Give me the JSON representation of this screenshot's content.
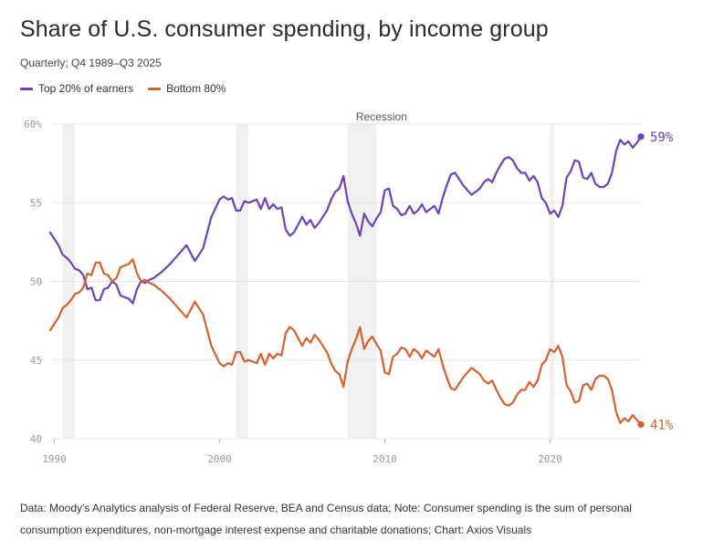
{
  "title": "Share of U.S. consumer spending, by income group",
  "subtitle": "Quarterly; Q4 1989–Q3 2025",
  "footer": "Data: Moody's Analytics analysis of Federal Reserve, BEA and Census data; Note: Consumer spending is the sum of personal consumption expenditures, non-mortgage interest expense and charitable donations; Chart: Axios Visuals",
  "colors": {
    "top20": "#6f3fc2",
    "bottom80": "#d9602b",
    "recession": "#f0f0f0",
    "grid": "#e6e6e6",
    "axis_text": "#999999"
  },
  "chart_data": {
    "type": "line",
    "title": "Share of U.S. consumer spending, by income group",
    "subtitle": "Quarterly; Q4 1989–Q3 2025",
    "xlabel": "",
    "ylabel": "",
    "xlim": [
      1989.75,
      2025.5
    ],
    "ylim": [
      40,
      60
    ],
    "x_ticks": [
      1990,
      2000,
      2010,
      2020
    ],
    "x_tick_labels": [
      "1990",
      "2000",
      "2010",
      "2020"
    ],
    "y_ticks": [
      40,
      45,
      50,
      55,
      60
    ],
    "y_tick_labels": [
      "40",
      "45",
      "50",
      "55",
      "60%"
    ],
    "grid": "horizontal",
    "legend_position": "top-left",
    "annotation": "Recession",
    "recessions": [
      [
        1990.5,
        1991.25
      ],
      [
        2001.0,
        2001.75
      ],
      [
        2007.75,
        2009.5
      ],
      [
        2020.0,
        2020.25
      ]
    ],
    "series": [
      {
        "name": "Top 20% of earners",
        "color": "#6f3fc2",
        "end_label": "59%",
        "points": [
          [
            1989.75,
            53.1
          ],
          [
            1990.0,
            52.7
          ],
          [
            1990.25,
            52.3
          ],
          [
            1990.5,
            51.7
          ],
          [
            1990.75,
            51.5
          ],
          [
            1991.0,
            51.2
          ],
          [
            1991.25,
            50.8
          ],
          [
            1991.5,
            50.7
          ],
          [
            1991.75,
            50.4
          ],
          [
            1992.0,
            49.5
          ],
          [
            1992.25,
            49.6
          ],
          [
            1992.5,
            48.8
          ],
          [
            1992.75,
            48.8
          ],
          [
            1993.0,
            49.5
          ],
          [
            1993.25,
            49.6
          ],
          [
            1993.5,
            50.0
          ],
          [
            1993.75,
            49.8
          ],
          [
            1994.0,
            49.1
          ],
          [
            1994.25,
            49.0
          ],
          [
            1994.5,
            48.9
          ],
          [
            1994.75,
            48.6
          ],
          [
            1995.0,
            49.5
          ],
          [
            1995.25,
            50.0
          ],
          [
            1995.5,
            49.9
          ],
          [
            1995.75,
            50.1
          ],
          [
            1996.0,
            50.2
          ],
          [
            1996.5,
            50.6
          ],
          [
            1997.0,
            51.1
          ],
          [
            1997.5,
            51.7
          ],
          [
            1998.0,
            52.3
          ],
          [
            1998.5,
            51.3
          ],
          [
            1999.0,
            52.1
          ],
          [
            1999.5,
            54.1
          ],
          [
            2000.0,
            55.2
          ],
          [
            2000.25,
            55.4
          ],
          [
            2000.5,
            55.2
          ],
          [
            2000.75,
            55.3
          ],
          [
            2001.0,
            54.5
          ],
          [
            2001.25,
            54.5
          ],
          [
            2001.5,
            55.1
          ],
          [
            2001.75,
            55.0
          ],
          [
            2002.0,
            55.1
          ],
          [
            2002.25,
            55.2
          ],
          [
            2002.5,
            54.6
          ],
          [
            2002.75,
            55.3
          ],
          [
            2003.0,
            54.6
          ],
          [
            2003.25,
            54.9
          ],
          [
            2003.5,
            54.6
          ],
          [
            2003.75,
            54.7
          ],
          [
            2004.0,
            53.3
          ],
          [
            2004.25,
            52.9
          ],
          [
            2004.5,
            53.1
          ],
          [
            2004.75,
            53.6
          ],
          [
            2005.0,
            54.1
          ],
          [
            2005.25,
            53.6
          ],
          [
            2005.5,
            53.9
          ],
          [
            2005.75,
            53.4
          ],
          [
            2006.0,
            53.7
          ],
          [
            2006.25,
            54.1
          ],
          [
            2006.5,
            54.5
          ],
          [
            2006.75,
            55.2
          ],
          [
            2007.0,
            55.7
          ],
          [
            2007.25,
            55.9
          ],
          [
            2007.5,
            56.7
          ],
          [
            2007.75,
            55.1
          ],
          [
            2008.0,
            54.3
          ],
          [
            2008.25,
            53.7
          ],
          [
            2008.5,
            52.9
          ],
          [
            2008.75,
            54.3
          ],
          [
            2009.0,
            53.8
          ],
          [
            2009.25,
            53.5
          ],
          [
            2009.5,
            54.0
          ],
          [
            2009.75,
            54.4
          ],
          [
            2010.0,
            55.8
          ],
          [
            2010.25,
            55.9
          ],
          [
            2010.5,
            54.8
          ],
          [
            2010.75,
            54.6
          ],
          [
            2011.0,
            54.2
          ],
          [
            2011.25,
            54.3
          ],
          [
            2011.5,
            54.8
          ],
          [
            2011.75,
            54.3
          ],
          [
            2012.0,
            54.5
          ],
          [
            2012.25,
            54.9
          ],
          [
            2012.5,
            54.4
          ],
          [
            2012.75,
            54.6
          ],
          [
            2013.0,
            54.8
          ],
          [
            2013.25,
            54.3
          ],
          [
            2013.5,
            55.3
          ],
          [
            2013.75,
            56.1
          ],
          [
            2014.0,
            56.8
          ],
          [
            2014.25,
            56.9
          ],
          [
            2014.5,
            56.5
          ],
          [
            2014.75,
            56.1
          ],
          [
            2015.0,
            55.8
          ],
          [
            2015.25,
            55.5
          ],
          [
            2015.5,
            55.7
          ],
          [
            2015.75,
            55.9
          ],
          [
            2016.0,
            56.3
          ],
          [
            2016.25,
            56.5
          ],
          [
            2016.5,
            56.3
          ],
          [
            2016.75,
            56.9
          ],
          [
            2017.0,
            57.4
          ],
          [
            2017.25,
            57.8
          ],
          [
            2017.5,
            57.9
          ],
          [
            2017.75,
            57.7
          ],
          [
            2018.0,
            57.2
          ],
          [
            2018.25,
            56.9
          ],
          [
            2018.5,
            56.9
          ],
          [
            2018.75,
            56.4
          ],
          [
            2019.0,
            56.7
          ],
          [
            2019.25,
            56.3
          ],
          [
            2019.5,
            55.3
          ],
          [
            2019.75,
            55.0
          ],
          [
            2020.0,
            54.3
          ],
          [
            2020.25,
            54.5
          ],
          [
            2020.5,
            54.1
          ],
          [
            2020.75,
            54.8
          ],
          [
            2021.0,
            56.6
          ],
          [
            2021.25,
            57.0
          ],
          [
            2021.5,
            57.7
          ],
          [
            2021.75,
            57.6
          ],
          [
            2022.0,
            56.6
          ],
          [
            2022.25,
            56.5
          ],
          [
            2022.5,
            56.9
          ],
          [
            2022.75,
            56.2
          ],
          [
            2023.0,
            56.0
          ],
          [
            2023.25,
            56.0
          ],
          [
            2023.5,
            56.2
          ],
          [
            2023.75,
            56.9
          ],
          [
            2024.0,
            58.3
          ],
          [
            2024.25,
            59.0
          ],
          [
            2024.5,
            58.7
          ],
          [
            2024.75,
            58.9
          ],
          [
            2025.0,
            58.5
          ],
          [
            2025.25,
            58.8
          ],
          [
            2025.5,
            59.2
          ]
        ]
      },
      {
        "name": "Bottom 80%",
        "color": "#d9602b",
        "end_label": "41%",
        "points": [
          [
            1989.75,
            46.9
          ],
          [
            1990.0,
            47.3
          ],
          [
            1990.25,
            47.7
          ],
          [
            1990.5,
            48.3
          ],
          [
            1990.75,
            48.5
          ],
          [
            1991.0,
            48.8
          ],
          [
            1991.25,
            49.2
          ],
          [
            1991.5,
            49.3
          ],
          [
            1991.75,
            49.6
          ],
          [
            1992.0,
            50.5
          ],
          [
            1992.25,
            50.4
          ],
          [
            1992.5,
            51.2
          ],
          [
            1992.75,
            51.2
          ],
          [
            1993.0,
            50.5
          ],
          [
            1993.25,
            50.4
          ],
          [
            1993.5,
            50.0
          ],
          [
            1993.75,
            50.2
          ],
          [
            1994.0,
            50.9
          ],
          [
            1994.25,
            51.0
          ],
          [
            1994.5,
            51.1
          ],
          [
            1994.75,
            51.4
          ],
          [
            1995.0,
            50.5
          ],
          [
            1995.25,
            50.0
          ],
          [
            1995.5,
            50.1
          ],
          [
            1995.75,
            49.9
          ],
          [
            1996.0,
            49.8
          ],
          [
            1996.5,
            49.4
          ],
          [
            1997.0,
            48.9
          ],
          [
            1997.5,
            48.3
          ],
          [
            1998.0,
            47.7
          ],
          [
            1998.5,
            48.7
          ],
          [
            1999.0,
            47.9
          ],
          [
            1999.5,
            45.9
          ],
          [
            2000.0,
            44.8
          ],
          [
            2000.25,
            44.6
          ],
          [
            2000.5,
            44.8
          ],
          [
            2000.75,
            44.7
          ],
          [
            2001.0,
            45.5
          ],
          [
            2001.25,
            45.5
          ],
          [
            2001.5,
            44.9
          ],
          [
            2001.75,
            45.0
          ],
          [
            2002.0,
            44.9
          ],
          [
            2002.25,
            44.8
          ],
          [
            2002.5,
            45.4
          ],
          [
            2002.75,
            44.7
          ],
          [
            2003.0,
            45.4
          ],
          [
            2003.25,
            45.1
          ],
          [
            2003.5,
            45.4
          ],
          [
            2003.75,
            45.3
          ],
          [
            2004.0,
            46.7
          ],
          [
            2004.25,
            47.1
          ],
          [
            2004.5,
            46.9
          ],
          [
            2004.75,
            46.4
          ],
          [
            2005.0,
            45.9
          ],
          [
            2005.25,
            46.4
          ],
          [
            2005.5,
            46.1
          ],
          [
            2005.75,
            46.6
          ],
          [
            2006.0,
            46.3
          ],
          [
            2006.25,
            45.9
          ],
          [
            2006.5,
            45.5
          ],
          [
            2006.75,
            44.8
          ],
          [
            2007.0,
            44.3
          ],
          [
            2007.25,
            44.1
          ],
          [
            2007.5,
            43.3
          ],
          [
            2007.75,
            44.9
          ],
          [
            2008.0,
            45.7
          ],
          [
            2008.25,
            46.3
          ],
          [
            2008.5,
            47.1
          ],
          [
            2008.75,
            45.7
          ],
          [
            2009.0,
            46.2
          ],
          [
            2009.25,
            46.5
          ],
          [
            2009.5,
            46.0
          ],
          [
            2009.75,
            45.6
          ],
          [
            2010.0,
            44.2
          ],
          [
            2010.25,
            44.1
          ],
          [
            2010.5,
            45.2
          ],
          [
            2010.75,
            45.4
          ],
          [
            2011.0,
            45.8
          ],
          [
            2011.25,
            45.7
          ],
          [
            2011.5,
            45.2
          ],
          [
            2011.75,
            45.7
          ],
          [
            2012.0,
            45.5
          ],
          [
            2012.25,
            45.1
          ],
          [
            2012.5,
            45.6
          ],
          [
            2012.75,
            45.4
          ],
          [
            2013.0,
            45.2
          ],
          [
            2013.25,
            45.7
          ],
          [
            2013.5,
            44.7
          ],
          [
            2013.75,
            43.9
          ],
          [
            2014.0,
            43.2
          ],
          [
            2014.25,
            43.1
          ],
          [
            2014.5,
            43.5
          ],
          [
            2014.75,
            43.9
          ],
          [
            2015.0,
            44.2
          ],
          [
            2015.25,
            44.5
          ],
          [
            2015.5,
            44.3
          ],
          [
            2015.75,
            44.1
          ],
          [
            2016.0,
            43.7
          ],
          [
            2016.25,
            43.5
          ],
          [
            2016.5,
            43.7
          ],
          [
            2016.75,
            43.1
          ],
          [
            2017.0,
            42.6
          ],
          [
            2017.25,
            42.2
          ],
          [
            2017.5,
            42.1
          ],
          [
            2017.75,
            42.3
          ],
          [
            2018.0,
            42.8
          ],
          [
            2018.25,
            43.1
          ],
          [
            2018.5,
            43.1
          ],
          [
            2018.75,
            43.6
          ],
          [
            2019.0,
            43.3
          ],
          [
            2019.25,
            43.7
          ],
          [
            2019.5,
            44.7
          ],
          [
            2019.75,
            45.0
          ],
          [
            2020.0,
            45.7
          ],
          [
            2020.25,
            45.5
          ],
          [
            2020.5,
            45.9
          ],
          [
            2020.75,
            45.2
          ],
          [
            2021.0,
            43.4
          ],
          [
            2021.25,
            43.0
          ],
          [
            2021.5,
            42.3
          ],
          [
            2021.75,
            42.4
          ],
          [
            2022.0,
            43.4
          ],
          [
            2022.25,
            43.5
          ],
          [
            2022.5,
            43.1
          ],
          [
            2022.75,
            43.8
          ],
          [
            2023.0,
            44.0
          ],
          [
            2023.25,
            44.0
          ],
          [
            2023.5,
            43.8
          ],
          [
            2023.75,
            43.1
          ],
          [
            2024.0,
            41.7
          ],
          [
            2024.25,
            41.0
          ],
          [
            2024.5,
            41.3
          ],
          [
            2024.75,
            41.1
          ],
          [
            2025.0,
            41.5
          ],
          [
            2025.25,
            41.2
          ],
          [
            2025.5,
            40.9
          ]
        ]
      }
    ]
  }
}
